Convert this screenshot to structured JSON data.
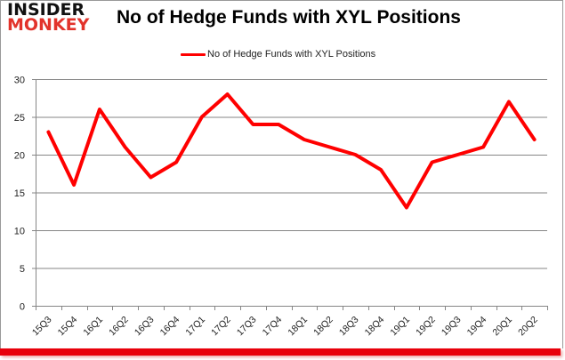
{
  "logo": {
    "line1": "INSIDER",
    "line2": "MONKEY"
  },
  "header": {
    "title": "No of Hedge Funds with XYL Positions"
  },
  "legend": {
    "label": "No of Hedge Funds with XYL Positions",
    "color": "#ff0000"
  },
  "colors": {
    "line": "#ff0000",
    "grid": "#868686",
    "accent_bar": "#e8000b"
  },
  "chart_data": {
    "type": "line",
    "title": "No of Hedge Funds with XYL Positions",
    "xlabel": "",
    "ylabel": "",
    "categories": [
      "15Q3",
      "15Q4",
      "16Q1",
      "16Q2",
      "16Q3",
      "16Q4",
      "17Q1",
      "17Q2",
      "17Q3",
      "17Q4",
      "18Q1",
      "18Q2",
      "18Q3",
      "18Q4",
      "19Q1",
      "19Q2",
      "19Q3",
      "19Q4",
      "20Q1",
      "20Q2"
    ],
    "series": [
      {
        "name": "No of Hedge Funds with XYL Positions",
        "values": [
          23,
          16,
          26,
          21,
          17,
          19,
          25,
          28,
          24,
          24,
          22,
          21,
          20,
          18,
          13,
          19,
          20,
          21,
          27,
          22
        ]
      }
    ],
    "ylim": [
      0,
      30
    ],
    "yticks": [
      0,
      5,
      10,
      15,
      20,
      25,
      30
    ],
    "grid": true,
    "legend_position": "top"
  }
}
